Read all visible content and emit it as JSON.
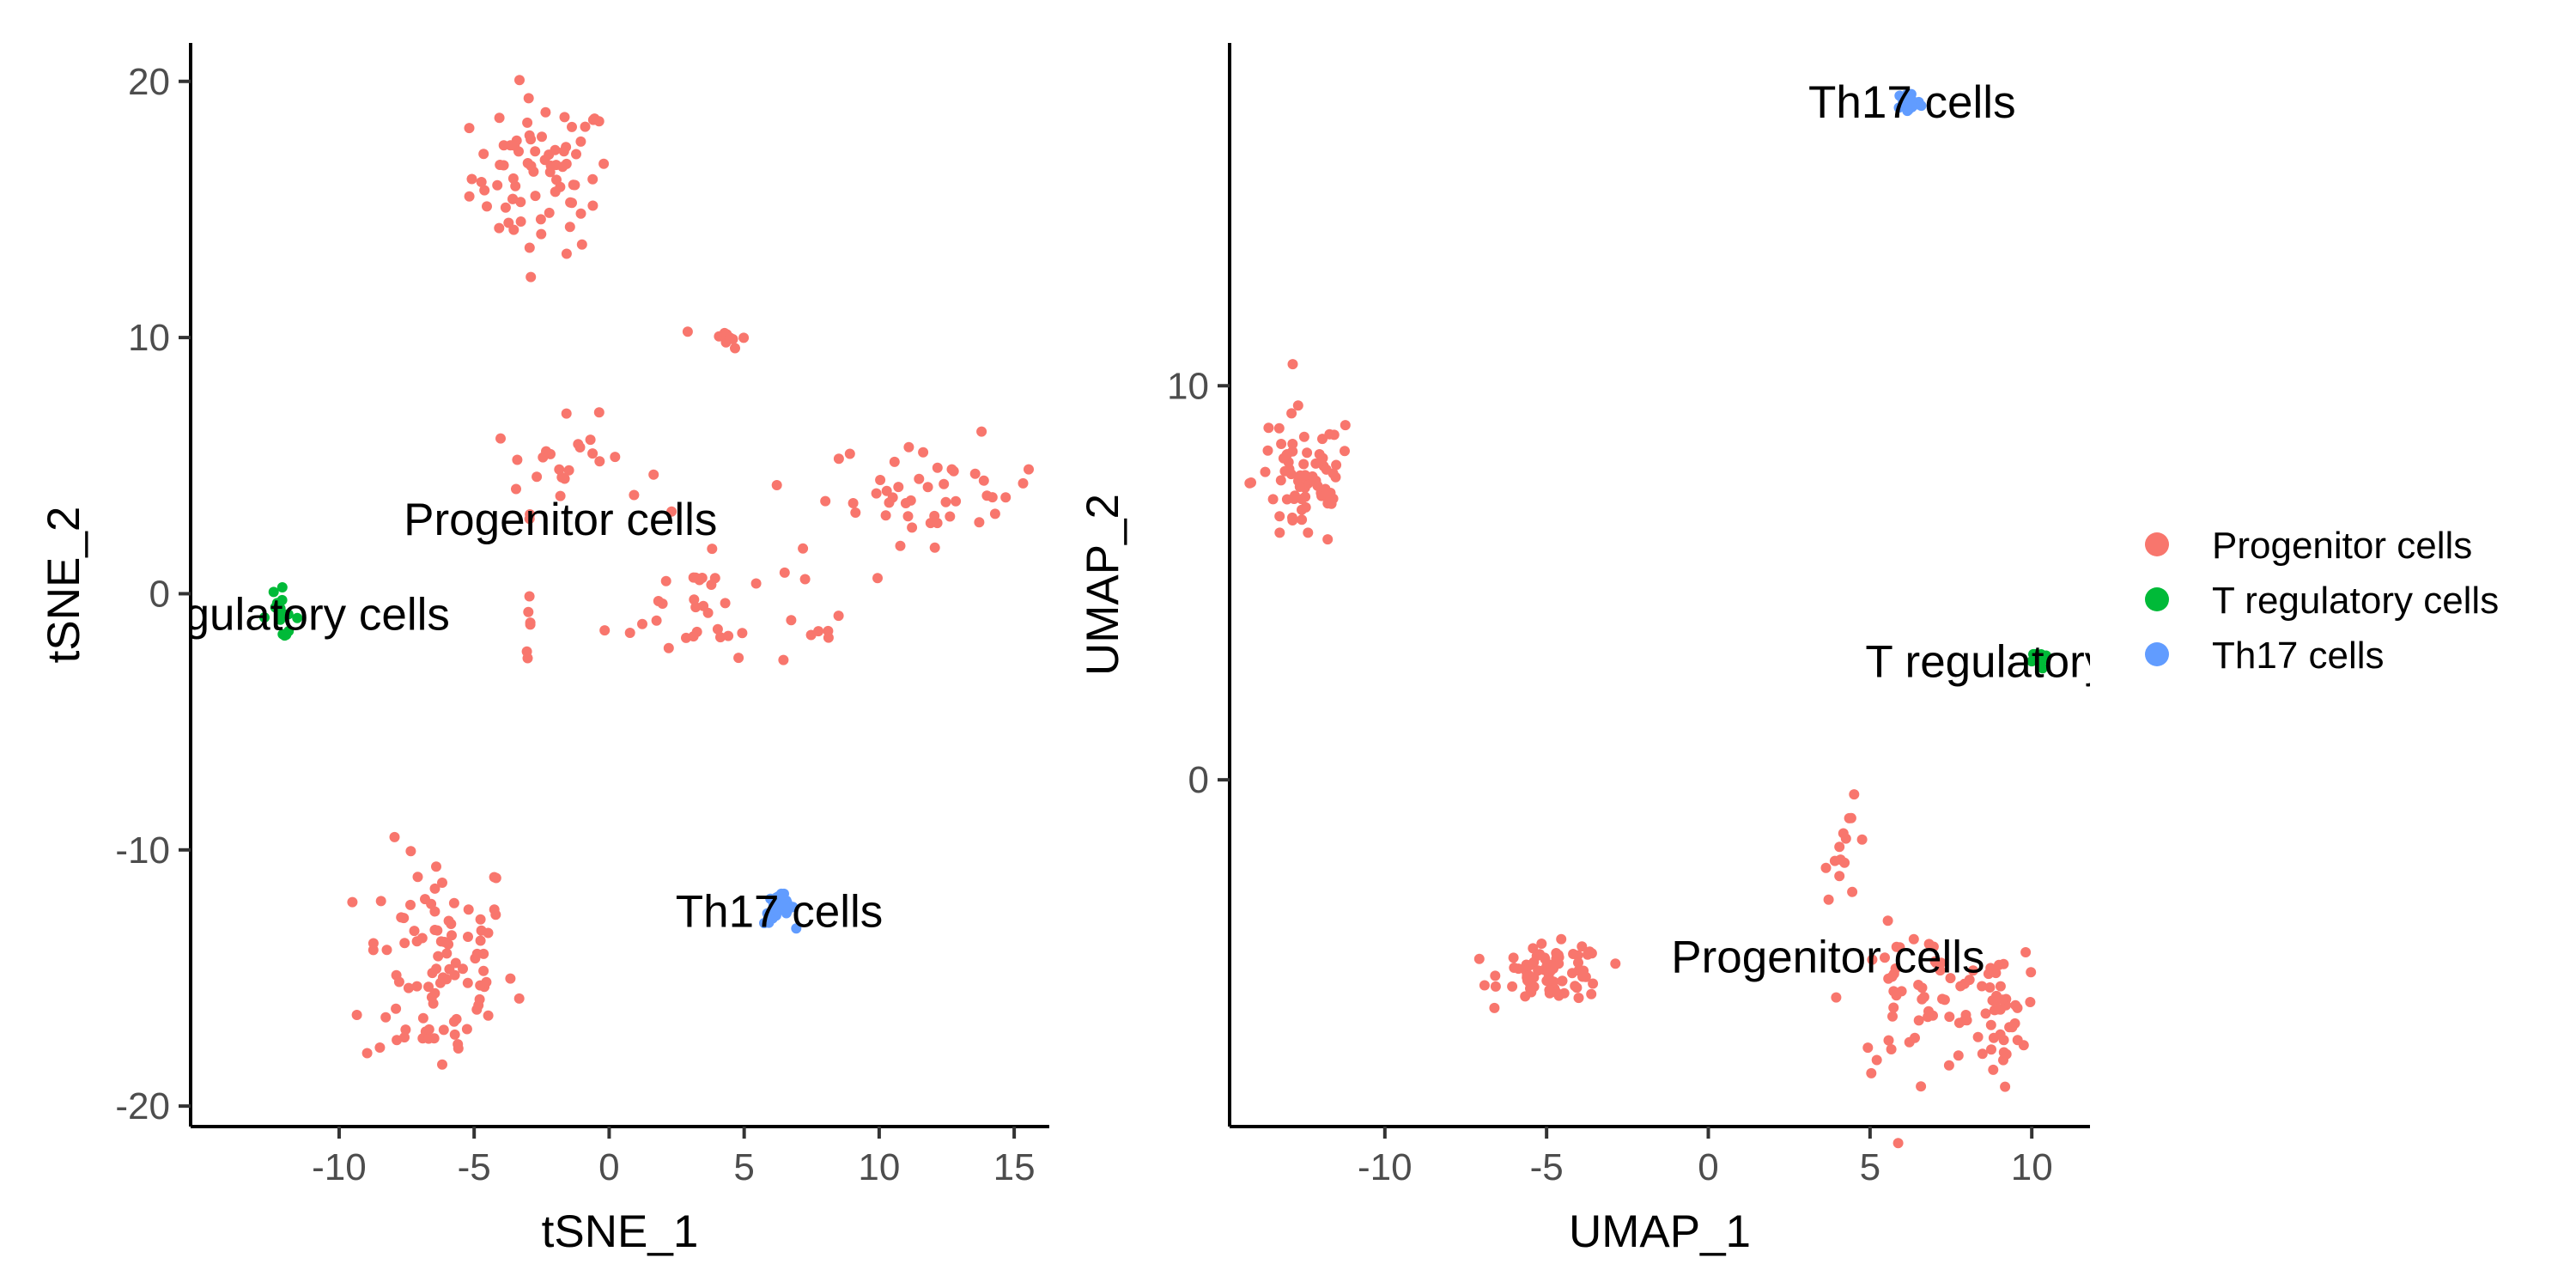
{
  "chart_data": [
    {
      "type": "scatter",
      "xlabel": "tSNE_1",
      "ylabel": "tSNE_2",
      "xlim": [
        -15.5,
        16.3
      ],
      "ylim": [
        -20.8,
        21.5
      ],
      "xticks": [
        -10,
        -5,
        0,
        5,
        10,
        15
      ],
      "yticks": [
        -20,
        -10,
        0,
        10,
        20
      ],
      "labels": [
        {
          "text": "Progenitor cells",
          "x": -1.8,
          "y": 2.9
        },
        {
          "text": "T regulatory cells",
          "x": -12.3,
          "y": -0.8
        },
        {
          "text": "Th17 cells",
          "x": 6.3,
          "y": -12.4
        }
      ],
      "series": [
        {
          "name": "Progenitor cells",
          "clusters": [
            {
              "cx": -2.5,
              "cy": 16.3,
              "sx": 1.3,
              "sy": 1.5,
              "n": 75
            },
            {
              "cx": -6.3,
              "cy": -14.5,
              "sx": 1.4,
              "sy": 2.3,
              "n": 95
            },
            {
              "cx": 4.3,
              "cy": 10.0,
              "sx": 0.4,
              "sy": 0.2,
              "n": 10
            },
            {
              "cx": -1.5,
              "cy": 5.0,
              "sx": 1.4,
              "sy": 0.9,
              "n": 25
            },
            {
              "cx": 3.5,
              "cy": -0.5,
              "sx": 1.8,
              "sy": 1.3,
              "n": 35
            },
            {
              "cx": 12.0,
              "cy": 4.0,
              "sx": 2.0,
              "sy": 1.0,
              "n": 45
            },
            {
              "cx": -3.0,
              "cy": -1.2,
              "sx": 0.05,
              "sy": 0.5,
              "n": 6
            },
            {
              "cx": 8.2,
              "cy": -1.6,
              "sx": 0.5,
              "sy": 0.1,
              "n": 4
            }
          ]
        },
        {
          "name": "T regulatory cells",
          "clusters": [
            {
              "cx": -12.2,
              "cy": -0.8,
              "sx": 0.35,
              "sy": 0.45,
              "n": 16
            }
          ]
        },
        {
          "name": "Th17 cells",
          "clusters": [
            {
              "cx": 6.3,
              "cy": -12.3,
              "sx": 0.28,
              "sy": 0.3,
              "n": 32
            }
          ]
        }
      ]
    },
    {
      "type": "scatter",
      "xlabel": "UMAP_1",
      "ylabel": "UMAP_2",
      "xlim": [
        -14.8,
        11.8
      ],
      "ylim": [
        -8.8,
        18.7
      ],
      "xticks": [
        -10,
        -5,
        0,
        5,
        10
      ],
      "yticks": [
        0,
        10
      ],
      "labels": [
        {
          "text": "Progenitor cells",
          "x": 3.7,
          "y": -4.5
        },
        {
          "text": "T regulatory cells",
          "x": 10.2,
          "y": 3.0
        },
        {
          "text": "Th17 cells",
          "x": 6.3,
          "y": 17.2
        }
      ],
      "series": [
        {
          "name": "Progenitor cells",
          "clusters": [
            {
              "cx": -12.5,
              "cy": 7.6,
              "sx": 0.8,
              "sy": 0.9,
              "n": 70
            },
            {
              "cx": -4.8,
              "cy": -4.9,
              "sx": 0.8,
              "sy": 0.35,
              "n": 75
            },
            {
              "cx": 4.3,
              "cy": -1.8,
              "sx": 0.35,
              "sy": 0.6,
              "n": 14
            },
            {
              "cx": 6.5,
              "cy": -5.6,
              "sx": 1.1,
              "sy": 0.9,
              "n": 55
            },
            {
              "cx": 8.9,
              "cy": -6.0,
              "sx": 0.45,
              "sy": 0.8,
              "n": 40
            }
          ]
        },
        {
          "name": "T regulatory cells",
          "clusters": [
            {
              "cx": 10.25,
              "cy": 3.05,
              "sx": 0.12,
              "sy": 0.12,
              "n": 14
            }
          ]
        },
        {
          "name": "Th17 cells",
          "clusters": [
            {
              "cx": 6.2,
              "cy": 17.2,
              "sx": 0.18,
              "sy": 0.15,
              "n": 32
            }
          ]
        }
      ]
    }
  ],
  "legend": {
    "placement": "right",
    "items": [
      {
        "label": "Progenitor cells",
        "color": "#F8766D"
      },
      {
        "label": "T regulatory cells",
        "color": "#00BA38"
      },
      {
        "label": "Th17 cells",
        "color": "#619CFF"
      }
    ]
  }
}
